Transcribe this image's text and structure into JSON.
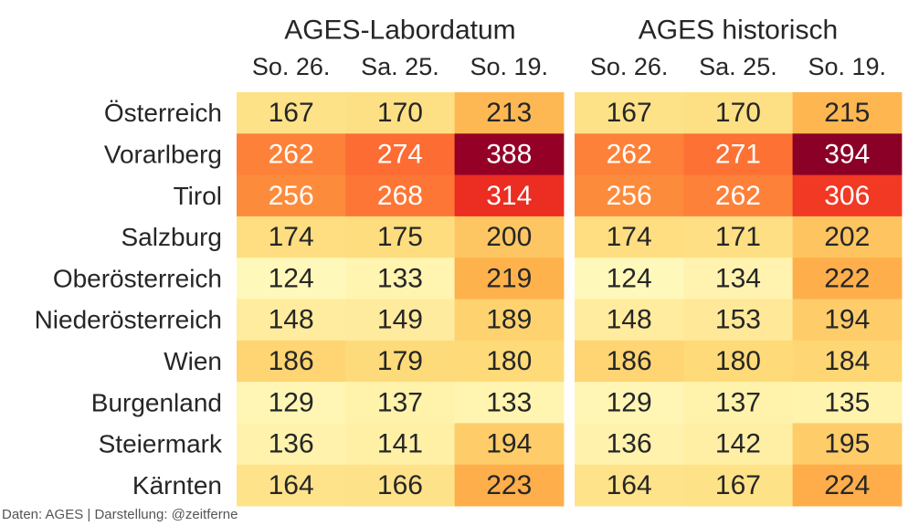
{
  "chart_data": {
    "type": "heatmap",
    "colormap": "YlOrRd",
    "color_range": [
      110,
      400
    ],
    "rows": [
      "Österreich",
      "Vorarlberg",
      "Tirol",
      "Salzburg",
      "Oberösterreich",
      "Niederösterreich",
      "Wien",
      "Burgenland",
      "Steiermark",
      "Kärnten"
    ],
    "panels": [
      {
        "title": "AGES-Labordatum",
        "columns": [
          "So. 26.",
          "Sa. 25.",
          "So. 19."
        ],
        "values": [
          [
            167,
            170,
            213
          ],
          [
            262,
            274,
            388
          ],
          [
            256,
            268,
            314
          ],
          [
            174,
            175,
            200
          ],
          [
            124,
            133,
            219
          ],
          [
            148,
            149,
            189
          ],
          [
            186,
            179,
            180
          ],
          [
            129,
            137,
            133
          ],
          [
            136,
            141,
            194
          ],
          [
            164,
            166,
            223
          ]
        ]
      },
      {
        "title": "AGES historisch",
        "columns": [
          "So. 26.",
          "Sa. 25.",
          "So. 19."
        ],
        "values": [
          [
            167,
            170,
            215
          ],
          [
            262,
            271,
            394
          ],
          [
            256,
            262,
            306
          ],
          [
            174,
            171,
            202
          ],
          [
            124,
            134,
            222
          ],
          [
            148,
            153,
            194
          ],
          [
            186,
            180,
            184
          ],
          [
            129,
            137,
            135
          ],
          [
            136,
            142,
            195
          ],
          [
            164,
            167,
            224
          ]
        ]
      }
    ]
  },
  "source": "Daten: AGES | Darstellung: @zeitferne"
}
